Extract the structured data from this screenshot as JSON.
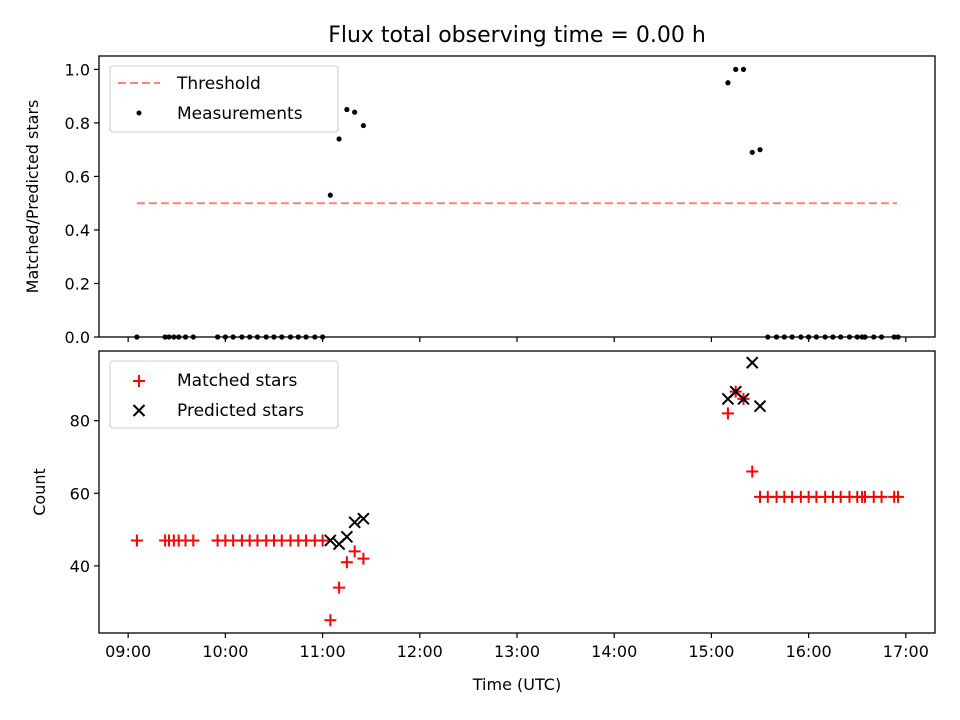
{
  "figure": {
    "title": "Flux total observing time = 0.00 h"
  },
  "chart_data": [
    {
      "type": "scatter",
      "panel": "top",
      "title": "",
      "xlabel": "",
      "ylabel": "Matched/Predicted stars",
      "xlim": [
        8.7,
        17.3
      ],
      "ylim": [
        0.0,
        1.05
      ],
      "yticks": [
        0.0,
        0.2,
        0.4,
        0.6,
        0.8,
        1.0
      ],
      "ytick_labels": [
        "0.0",
        "0.2",
        "0.4",
        "0.6",
        "0.8",
        "1.0"
      ],
      "xticks": [
        9,
        10,
        11,
        12,
        13,
        14,
        15,
        16,
        17
      ],
      "legend_position": "top-left",
      "grid": false,
      "series": [
        {
          "name": "Threshold",
          "kind": "dashed-line",
          "color": "#ff7f7f",
          "x": [
            9.09,
            16.91
          ],
          "y": [
            0.5,
            0.5
          ]
        },
        {
          "name": "Measurements",
          "kind": "dot",
          "color": "#000000",
          "x": [
            9.09,
            9.38,
            9.42,
            9.47,
            9.52,
            9.59,
            9.67,
            9.92,
            10.0,
            10.08,
            10.17,
            10.25,
            10.33,
            10.42,
            10.5,
            10.58,
            10.67,
            10.75,
            10.83,
            10.92,
            11.0,
            11.08,
            11.17,
            11.25,
            11.33,
            11.42,
            15.17,
            15.25,
            15.33,
            15.42,
            15.5,
            15.58,
            15.67,
            15.75,
            15.83,
            15.92,
            16.0,
            16.08,
            16.17,
            16.25,
            16.33,
            16.42,
            16.5,
            16.55,
            16.58,
            16.67,
            16.75,
            16.88,
            16.92
          ],
          "y": [
            0,
            0,
            0,
            0,
            0,
            0,
            0,
            0,
            0,
            0,
            0,
            0,
            0,
            0,
            0,
            0,
            0,
            0,
            0,
            0,
            0,
            0.53,
            0.74,
            0.85,
            0.84,
            0.79,
            0.95,
            1.0,
            1.0,
            0.69,
            0.7,
            0,
            0,
            0,
            0,
            0,
            0,
            0,
            0,
            0,
            0,
            0,
            0,
            0,
            0,
            0,
            0,
            0,
            0
          ]
        }
      ]
    },
    {
      "type": "scatter",
      "panel": "bottom",
      "title": "",
      "xlabel": "Time (UTC)",
      "ylabel": "Count",
      "xlim": [
        8.7,
        17.3
      ],
      "ylim": [
        21.5,
        99.2
      ],
      "yticks": [
        40,
        60,
        80
      ],
      "ytick_labels": [
        "40",
        "60",
        "80"
      ],
      "xticks": [
        9,
        10,
        11,
        12,
        13,
        14,
        15,
        16,
        17
      ],
      "xtick_labels": [
        "09:00",
        "10:00",
        "11:00",
        "12:00",
        "13:00",
        "14:00",
        "15:00",
        "16:00",
        "17:00"
      ],
      "legend_position": "top-left",
      "grid": false,
      "series": [
        {
          "name": "Matched stars",
          "kind": "plus",
          "color": "#ff0000",
          "x": [
            9.09,
            9.38,
            9.42,
            9.47,
            9.52,
            9.59,
            9.67,
            9.92,
            10.0,
            10.08,
            10.17,
            10.25,
            10.33,
            10.42,
            10.5,
            10.58,
            10.67,
            10.75,
            10.83,
            10.92,
            11.0,
            11.08,
            11.17,
            11.25,
            11.33,
            11.42,
            15.17,
            15.25,
            15.33,
            15.42,
            15.5,
            15.58,
            15.67,
            15.75,
            15.83,
            15.92,
            16.0,
            16.08,
            16.17,
            16.25,
            16.33,
            16.42,
            16.5,
            16.55,
            16.58,
            16.67,
            16.75,
            16.88,
            16.92
          ],
          "y": [
            47,
            47,
            47,
            47,
            47,
            47,
            47,
            47,
            47,
            47,
            47,
            47,
            47,
            47,
            47,
            47,
            47,
            47,
            47,
            47,
            47,
            25,
            34,
            41,
            44,
            42,
            82,
            88,
            86,
            66,
            59,
            59,
            59,
            59,
            59,
            59,
            59,
            59,
            59,
            59,
            59,
            59,
            59,
            59,
            59,
            59,
            59,
            59,
            59
          ]
        },
        {
          "name": "Predicted stars",
          "kind": "x",
          "color": "#000000",
          "x": [
            11.08,
            11.17,
            11.25,
            11.33,
            11.42,
            15.17,
            15.25,
            15.33,
            15.42,
            15.5
          ],
          "y": [
            47,
            46,
            48,
            52,
            53,
            86,
            88,
            86,
            96,
            84
          ]
        }
      ]
    }
  ]
}
